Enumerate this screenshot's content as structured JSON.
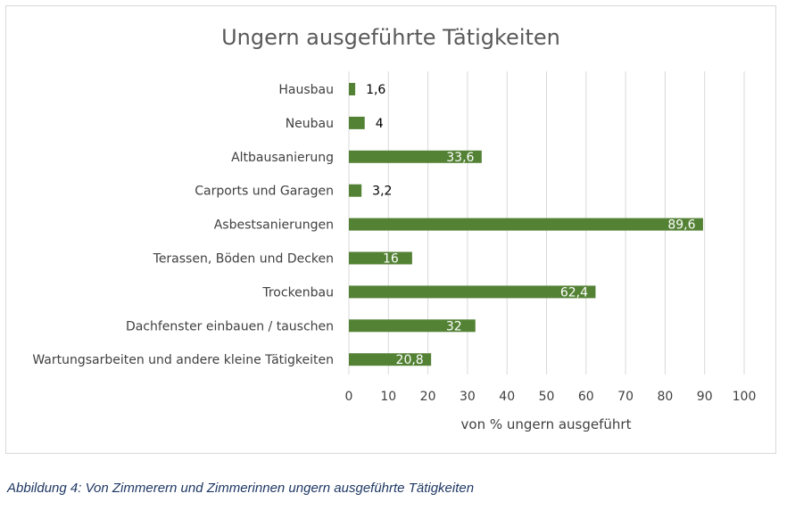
{
  "chart_data": {
    "type": "bar",
    "orientation": "horizontal",
    "title": "Ungern ausgeführte Tätigkeiten",
    "xlabel": "von % ungern ausgeführt",
    "ylabel": "",
    "categories": [
      "Hausbau",
      "Neubau",
      "Altbausanierung",
      "Carports und Garagen",
      "Asbestsanierungen",
      "Terassen, Böden und Decken",
      "Trockenbau",
      "Dachfenster einbauen / tauschen",
      "Wartungsarbeiten und andere kleine Tätigkeiten"
    ],
    "values": [
      1.6,
      4,
      33.6,
      3.2,
      89.6,
      16,
      62.4,
      32,
      20.8
    ],
    "data_labels": [
      "1,6",
      "4",
      "33,6",
      "3,2",
      "89,6",
      "16",
      "62,4",
      "32",
      "20,8"
    ],
    "xlim": [
      0,
      100
    ],
    "xticks": [
      0,
      10,
      20,
      30,
      40,
      50,
      60,
      70,
      80,
      90,
      100
    ],
    "grid": "vertical",
    "legend": "none",
    "bar_color": "#548235"
  },
  "caption": "Abbildung 4: Von Zimmerern und Zimmerinnen ungern ausgeführte Tätigkeiten"
}
